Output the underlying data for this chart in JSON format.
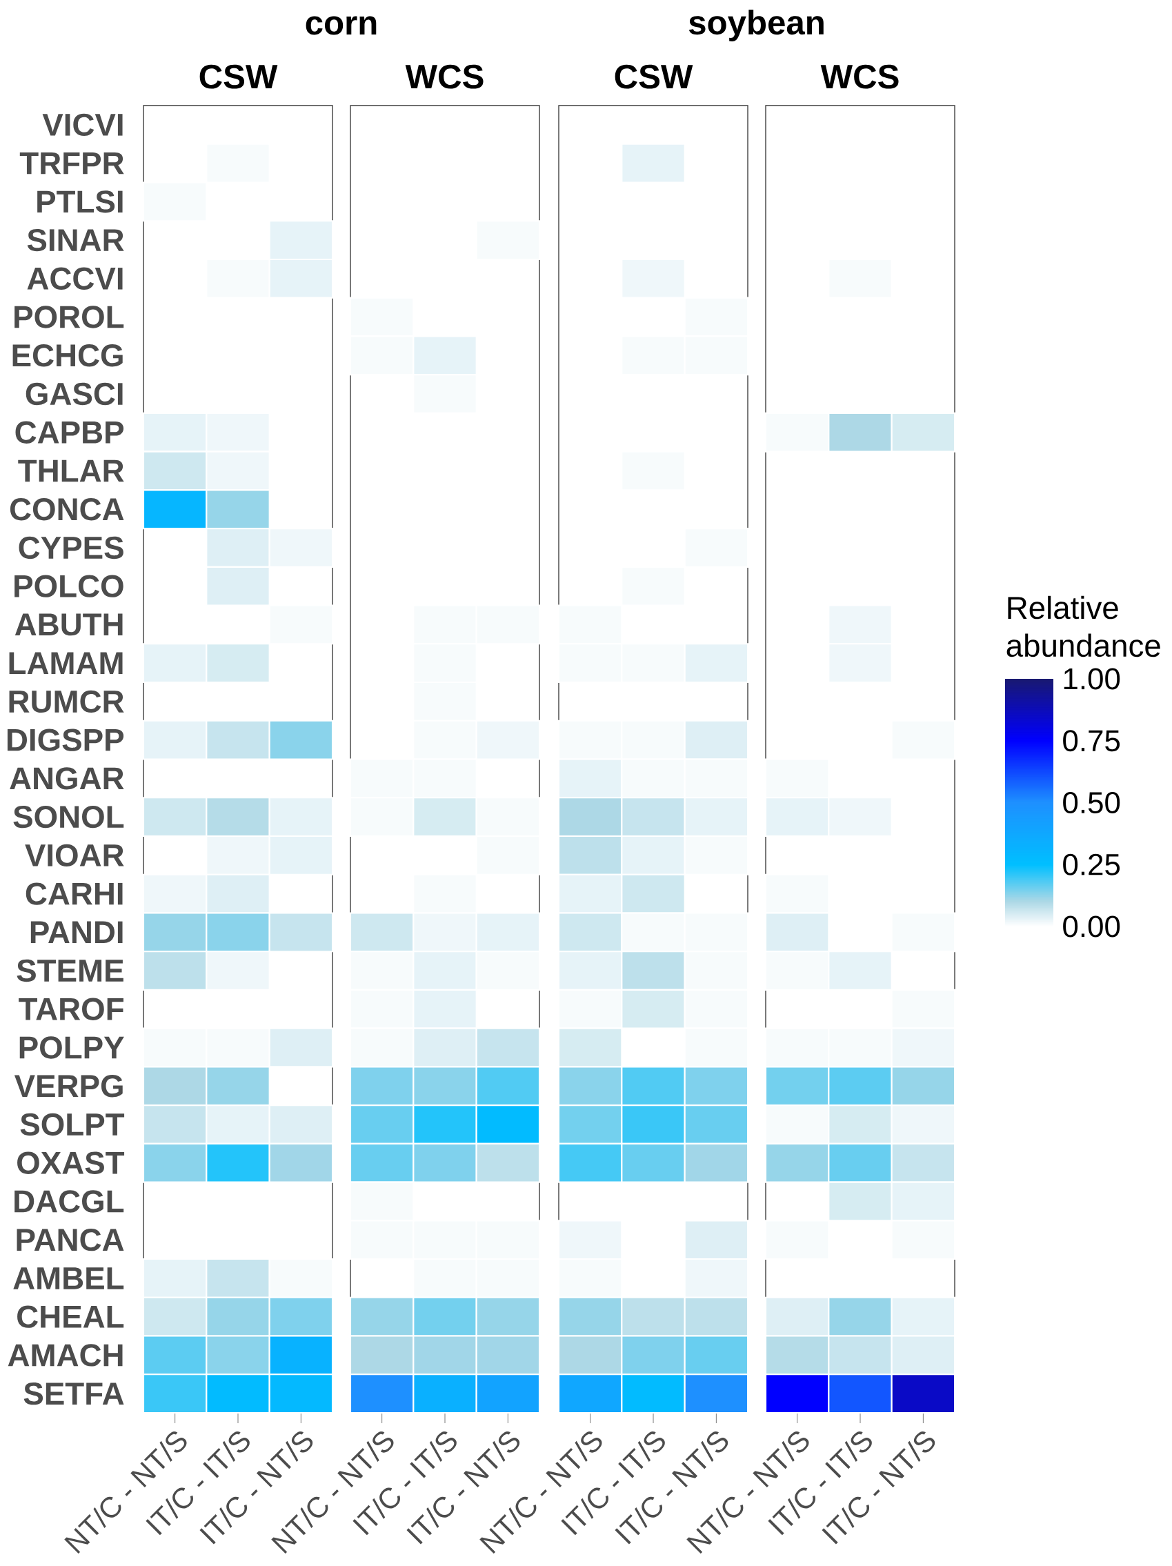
{
  "chart_data": {
    "type": "heatmap",
    "annotations": [
      "corn",
      "soybean",
      "CSW",
      "WCS",
      "CSW",
      "WCS"
    ],
    "clabel": "Relative abundance",
    "clim": [
      0,
      1
    ],
    "cticks": [
      {
        "value": 0,
        "label": "0.00"
      },
      {
        "value": 0.25,
        "label": "0.25"
      },
      {
        "value": 0.5,
        "label": "0.50"
      },
      {
        "value": 0.75,
        "label": "0.75"
      },
      {
        "value": 1,
        "label": "1.00"
      }
    ],
    "categories": [
      "NT/C - NT/S",
      "IT/C - IT/S",
      "IT/C - NT/S",
      "NT/C - NT/S",
      "IT/C - IT/S",
      "IT/C - NT/S",
      "NT/C - NT/S",
      "IT/C - IT/S",
      "IT/C - NT/S",
      "NT/C - NT/S",
      "IT/C - IT/S",
      "IT/C - NT/S"
    ],
    "y_categories": [
      "VICVI",
      "TRFPR",
      "PTLSI",
      "SINAR",
      "ACCVI",
      "POROL",
      "ECHCG",
      "GASCI",
      "CAPBP",
      "THLAR",
      "CONCA",
      "CYPES",
      "POLCO",
      "ABUTH",
      "LAMAM",
      "RUMCR",
      "DIGSPP",
      "ANGAR",
      "SONOL",
      "VIOAR",
      "CARHI",
      "PANDI",
      "STEME",
      "TAROF",
      "POLPY",
      "VERPG",
      "SOLPT",
      "OXAST",
      "DACGL",
      "PANCA",
      "AMBEL",
      "CHEAL",
      "AMACH",
      "SETFA"
    ],
    "cells": [
      [
        null,
        null,
        null,
        null,
        null,
        null,
        null,
        null,
        null,
        null,
        null,
        null
      ],
      [
        null,
        0.01,
        null,
        null,
        null,
        null,
        null,
        0.03,
        null,
        null,
        null,
        null
      ],
      [
        0.01,
        null,
        null,
        null,
        null,
        null,
        null,
        null,
        null,
        null,
        null,
        null
      ],
      [
        null,
        null,
        0.03,
        null,
        null,
        0.01,
        null,
        null,
        null,
        null,
        null,
        null
      ],
      [
        null,
        0.01,
        0.03,
        null,
        null,
        null,
        null,
        0.02,
        null,
        null,
        0.01,
        null
      ],
      [
        null,
        null,
        null,
        0.01,
        null,
        null,
        null,
        null,
        0.01,
        null,
        null,
        null
      ],
      [
        null,
        null,
        null,
        0.01,
        0.03,
        null,
        null,
        0.01,
        0.01,
        null,
        null,
        null
      ],
      [
        null,
        null,
        null,
        null,
        0.01,
        null,
        null,
        null,
        null,
        null,
        null,
        null
      ],
      [
        0.03,
        0.02,
        null,
        null,
        null,
        null,
        null,
        null,
        null,
        0.01,
        0.1,
        0.05
      ],
      [
        0.06,
        0.02,
        null,
        null,
        null,
        null,
        null,
        0.01,
        null,
        null,
        null,
        null
      ],
      [
        0.3,
        0.12,
        null,
        null,
        null,
        null,
        null,
        null,
        null,
        null,
        null,
        null
      ],
      [
        null,
        0.04,
        0.02,
        null,
        null,
        null,
        null,
        null,
        0.01,
        null,
        null,
        null
      ],
      [
        null,
        0.04,
        null,
        null,
        null,
        null,
        null,
        0.01,
        null,
        null,
        null,
        null
      ],
      [
        null,
        null,
        0.01,
        null,
        0.01,
        0.01,
        0.01,
        null,
        null,
        null,
        0.02,
        null
      ],
      [
        0.03,
        0.05,
        null,
        null,
        0.01,
        null,
        0.01,
        0.01,
        0.03,
        null,
        0.02,
        null
      ],
      [
        null,
        null,
        null,
        null,
        0.01,
        null,
        null,
        null,
        null,
        null,
        null,
        null
      ],
      [
        0.03,
        0.07,
        0.13,
        null,
        0.01,
        0.02,
        0.01,
        0.01,
        0.04,
        null,
        null,
        0.01
      ],
      [
        null,
        null,
        null,
        0.01,
        0.01,
        null,
        0.03,
        0.01,
        0.01,
        0.01,
        null,
        null
      ],
      [
        0.06,
        0.09,
        0.03,
        0.01,
        0.05,
        0.01,
        0.1,
        0.07,
        0.03,
        0.03,
        0.02,
        null
      ],
      [
        null,
        0.02,
        0.03,
        null,
        null,
        0.01,
        0.08,
        0.03,
        0.01,
        null,
        null,
        null
      ],
      [
        0.02,
        0.04,
        null,
        null,
        0.01,
        null,
        0.03,
        0.06,
        null,
        0.01,
        null,
        null
      ],
      [
        0.12,
        0.13,
        0.07,
        0.06,
        0.02,
        0.03,
        0.06,
        0.01,
        0.01,
        0.04,
        null,
        0.01
      ],
      [
        0.08,
        0.02,
        null,
        0.01,
        0.03,
        0.01,
        0.03,
        0.08,
        0.01,
        0.01,
        0.03,
        null
      ],
      [
        null,
        null,
        null,
        0.01,
        0.03,
        null,
        0.01,
        0.05,
        0.01,
        null,
        null,
        0.01
      ],
      [
        0.01,
        0.01,
        0.04,
        0.01,
        0.04,
        0.07,
        0.05,
        null,
        0.01,
        0.01,
        0.01,
        0.02
      ],
      [
        0.1,
        0.12,
        null,
        0.14,
        0.13,
        0.18,
        0.13,
        0.18,
        0.14,
        0.15,
        0.17,
        0.12
      ],
      [
        0.07,
        0.03,
        0.04,
        0.16,
        0.22,
        0.27,
        0.15,
        0.2,
        0.16,
        0.01,
        0.05,
        0.02
      ],
      [
        0.13,
        0.22,
        0.11,
        0.16,
        0.14,
        0.08,
        0.19,
        0.16,
        0.11,
        0.12,
        0.16,
        0.07
      ],
      [
        null,
        null,
        null,
        0.01,
        null,
        null,
        null,
        null,
        null,
        null,
        0.05,
        0.03
      ],
      [
        null,
        null,
        null,
        0.01,
        0.01,
        0.01,
        0.02,
        null,
        0.04,
        0.01,
        null,
        0.01
      ],
      [
        0.03,
        0.07,
        0.01,
        null,
        0.01,
        0.01,
        0.01,
        null,
        0.02,
        null,
        null,
        null
      ],
      [
        0.06,
        0.12,
        0.14,
        0.12,
        0.15,
        0.12,
        0.12,
        0.08,
        0.08,
        0.04,
        0.12,
        0.03
      ],
      [
        0.17,
        0.13,
        0.32,
        0.1,
        0.11,
        0.11,
        0.1,
        0.14,
        0.16,
        0.09,
        0.07,
        0.04
      ],
      [
        0.2,
        0.27,
        0.28,
        0.5,
        0.33,
        0.4,
        0.38,
        0.27,
        0.5,
        0.75,
        0.6,
        0.85
      ]
    ]
  }
}
